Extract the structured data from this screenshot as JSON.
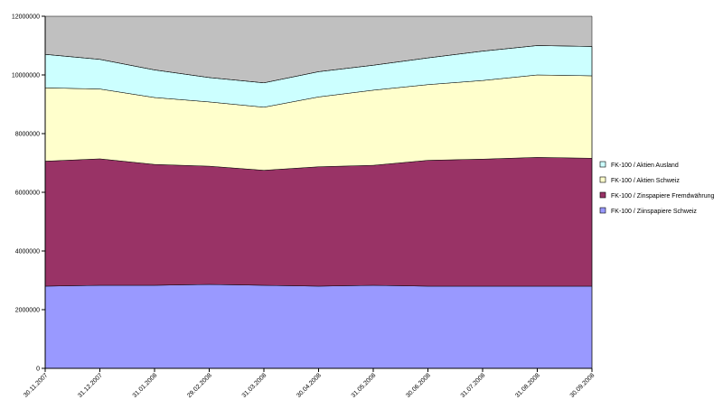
{
  "chart_data": {
    "type": "area",
    "stacked": true,
    "title": "",
    "xlabel": "",
    "ylabel": "",
    "ylim": [
      0,
      12000000
    ],
    "y_ticks": [
      0,
      2000000,
      4000000,
      6000000,
      8000000,
      10000000,
      12000000
    ],
    "y_tick_labels": [
      "0",
      "2000000",
      "4000000",
      "6000000",
      "8000000",
      "10000000",
      "12000000"
    ],
    "grid": false,
    "legend_position": "right",
    "x": [
      "30.11.2007",
      "31.12.2007",
      "31.01.2008",
      "29.02.2008",
      "31.03.2008",
      "30.04.2008",
      "31.05.2008",
      "30.06.2008",
      "31.07.2008",
      "31.08.2008",
      "30.09.2008"
    ],
    "series": [
      {
        "name": "FK-100 / Ziinspapiere Schweiz",
        "color": "#9999ff",
        "values": [
          2800000,
          2830000,
          2830000,
          2860000,
          2830000,
          2800000,
          2830000,
          2800000,
          2800000,
          2800000,
          2800000
        ]
      },
      {
        "name": "FK-100 / Zinspapiere Fremdwährung",
        "color": "#993366",
        "values": [
          4260000,
          4310000,
          4120000,
          4030000,
          3920000,
          4070000,
          4090000,
          4290000,
          4330000,
          4390000,
          4360000
        ]
      },
      {
        "name": "FK-100 / Aktien Schweiz",
        "color": "#ffffcc",
        "values": [
          2500000,
          2380000,
          2280000,
          2190000,
          2150000,
          2380000,
          2560000,
          2580000,
          2680000,
          2810000,
          2810000
        ]
      },
      {
        "name": "FK-100 / Aktien Ausland",
        "color": "#ccffff",
        "values": [
          1140000,
          1010000,
          940000,
          830000,
          830000,
          860000,
          850000,
          910000,
          1000000,
          1000000,
          1000000
        ]
      }
    ],
    "background_series_color": "#c0c0c0",
    "background_top_value": 12000000,
    "legend_order": [
      "FK-100 / Aktien Ausland",
      "FK-100 / Aktien Schweiz",
      "FK-100 / Zinspapiere Fremdwährung",
      "FK-100 / Ziinspapiere Schweiz"
    ]
  }
}
